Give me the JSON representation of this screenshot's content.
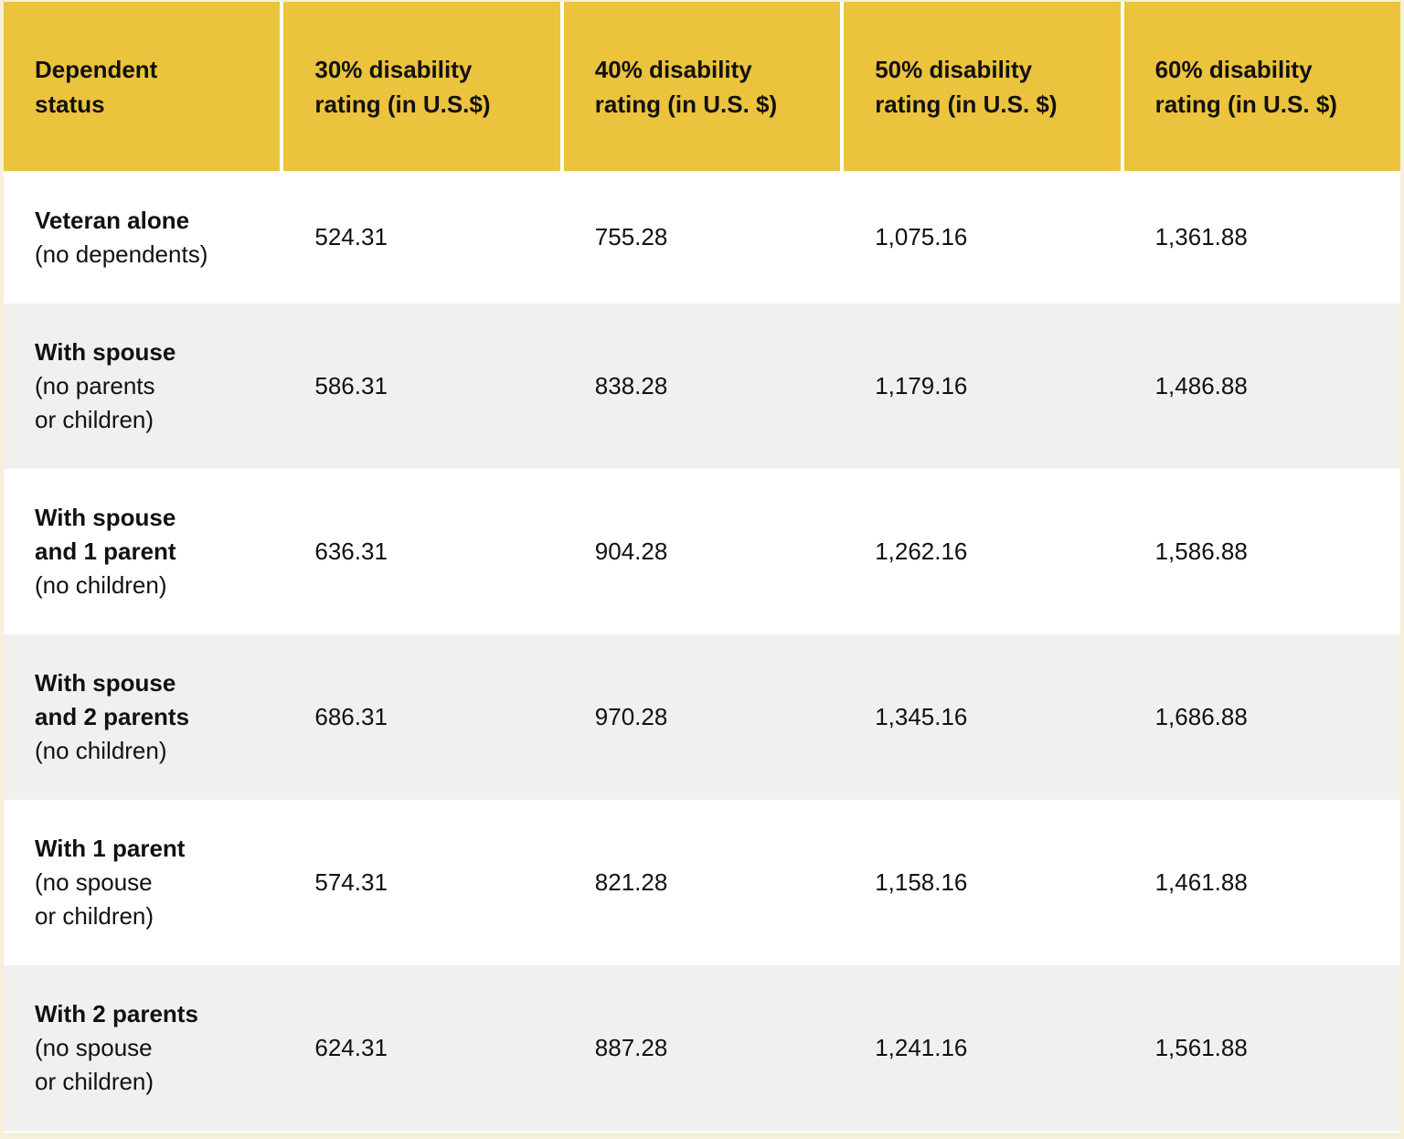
{
  "table": {
    "columns": [
      {
        "label": "Dependent\nstatus"
      },
      {
        "label": "30% disability\nrating (in U.S.$)"
      },
      {
        "label": "40% disability\nrating (in U.S. $)"
      },
      {
        "label": "50% disability\nrating (in U.S. $)"
      },
      {
        "label": "60% disability\nrating (in U.S. $)"
      }
    ],
    "rows": [
      {
        "status_bold": "Veteran alone",
        "status_note": "(no dependents)",
        "values": [
          "524.31",
          "755.28",
          "1,075.16",
          "1,361.88"
        ]
      },
      {
        "status_bold": "With spouse",
        "status_note": "(no parents\nor children)",
        "values": [
          "586.31",
          "838.28",
          "1,179.16",
          "1,486.88"
        ]
      },
      {
        "status_bold": "With spouse\nand 1 parent",
        "status_note": "(no children)",
        "values": [
          "636.31",
          "904.28",
          "1,262.16",
          "1,586.88"
        ]
      },
      {
        "status_bold": "With spouse\nand 2 parents",
        "status_note": "(no children)",
        "values": [
          "686.31",
          "970.28",
          "1,345.16",
          "1,686.88"
        ]
      },
      {
        "status_bold": "With 1 parent",
        "status_note": "(no spouse\nor children)",
        "values": [
          "574.31",
          "821.28",
          "1,158.16",
          "1,461.88"
        ]
      },
      {
        "status_bold": "With 2 parents",
        "status_note": "(no spouse\nor children)",
        "values": [
          "624.31",
          "887.28",
          "1,241.16",
          "1,561.88"
        ]
      }
    ]
  },
  "colors": {
    "header_bg": "#ecc33d",
    "row_bg": "#ffffff",
    "row_alt_bg": "#f0f0ee",
    "frame_bg": "#f6f0da",
    "text": "#111111"
  }
}
